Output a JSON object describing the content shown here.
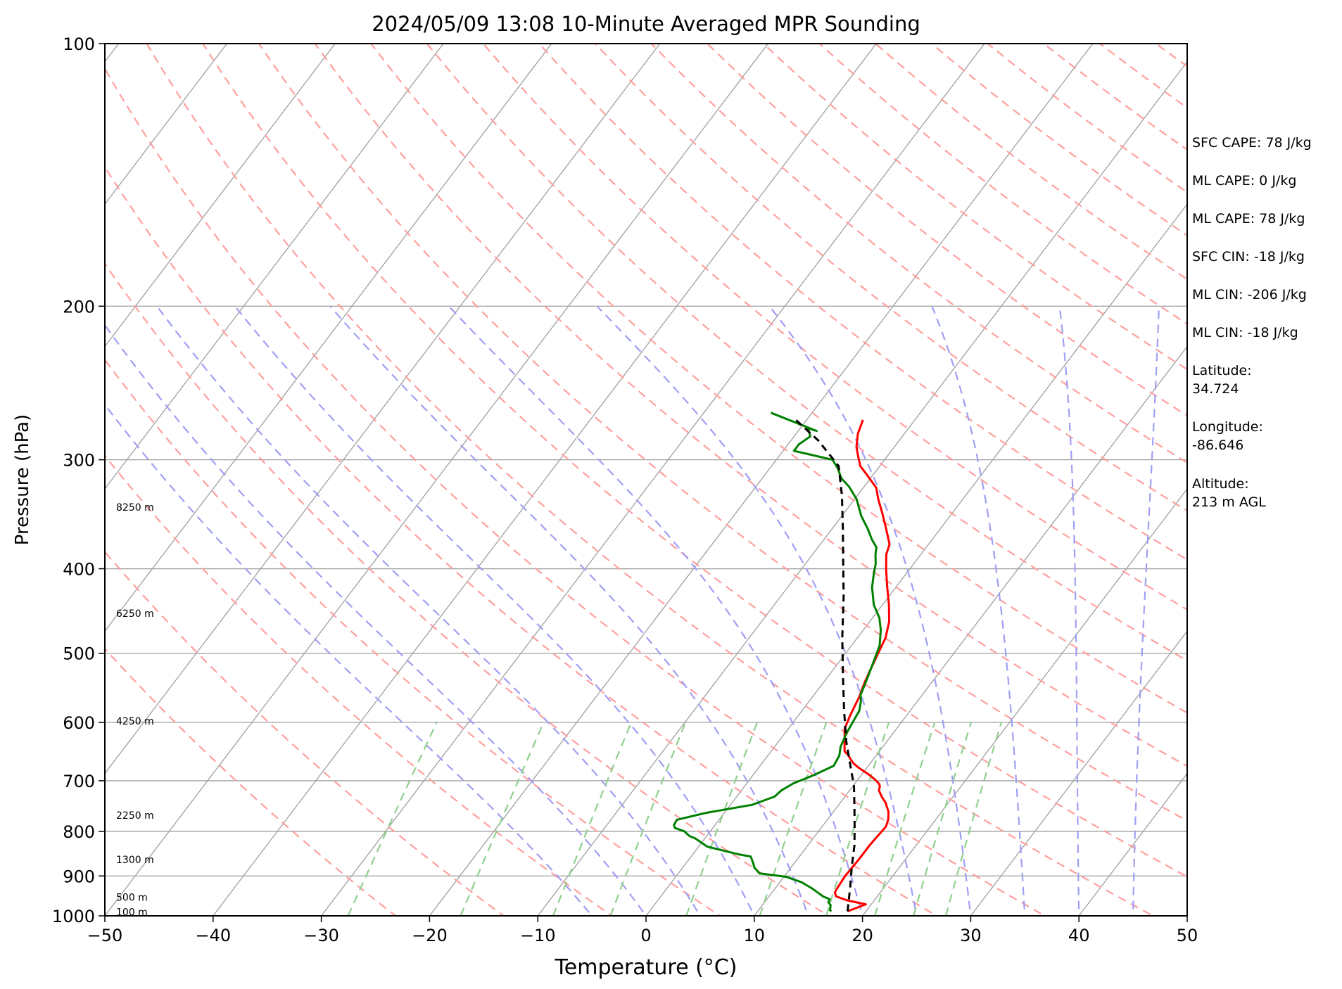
{
  "chart_data": {
    "type": "line",
    "subtype": "skew-t log-p sounding",
    "title": "2024/05/09 13:08 10-Minute Averaged MPR Sounding",
    "xlabel": "Temperature (°C)",
    "ylabel": "Pressure (hPa)",
    "xlim": [
      -50,
      50
    ],
    "ylim": [
      1000,
      100
    ],
    "y_scale": "log",
    "x_ticks": [
      "−50",
      "−40",
      "−30",
      "−20",
      "−10",
      "0",
      "10",
      "20",
      "30",
      "40",
      "50"
    ],
    "y_ticks": [
      "100",
      "200",
      "300",
      "400",
      "500",
      "600",
      "700",
      "800",
      "900",
      "1000"
    ],
    "height_labels": [
      "8250 m",
      "6250 m",
      "4250 m",
      "2250 m",
      "1300 m",
      "500 m",
      "100 m"
    ],
    "height_label_pressures": [
      340,
      450,
      598,
      767,
      862,
      952,
      990
    ],
    "grid": true,
    "series": [
      {
        "role": "temperature",
        "color": "#ff0000",
        "points": [
          [
            18.3,
            988
          ],
          [
            19.5,
            970
          ],
          [
            17.5,
            960
          ],
          [
            16.2,
            950
          ],
          [
            15.8,
            940
          ],
          [
            15.7,
            925
          ],
          [
            15.6,
            900
          ],
          [
            15.7,
            860
          ],
          [
            15.7,
            830
          ],
          [
            15.8,
            810
          ],
          [
            15.9,
            790
          ],
          [
            15.6,
            775
          ],
          [
            15.1,
            760
          ],
          [
            14.6,
            750
          ],
          [
            14.2,
            742
          ],
          [
            13.4,
            730
          ],
          [
            12.7,
            718
          ],
          [
            12.5,
            710
          ],
          [
            12.2,
            705
          ],
          [
            11.6,
            698
          ],
          [
            10.8,
            690
          ],
          [
            10.0,
            683
          ],
          [
            9.2,
            676
          ],
          [
            8.4,
            668
          ],
          [
            7.8,
            660
          ],
          [
            7.3,
            653
          ],
          [
            6.8,
            648
          ],
          [
            5.2,
            610
          ],
          [
            4.8,
            590
          ],
          [
            4.3,
            560
          ],
          [
            3.8,
            540
          ],
          [
            3.4,
            520
          ],
          [
            3.0,
            500
          ],
          [
            2.6,
            480
          ],
          [
            1.8,
            460
          ],
          [
            0.6,
            440
          ],
          [
            -0.8,
            420
          ],
          [
            -2.2,
            400
          ],
          [
            -3.2,
            385
          ],
          [
            -3.6,
            375
          ],
          [
            -5.0,
            360
          ],
          [
            -6.5,
            345
          ],
          [
            -7.8,
            333
          ],
          [
            -8.8,
            323
          ],
          [
            -10.6,
            312
          ],
          [
            -11.8,
            305
          ],
          [
            -12.6,
            298
          ],
          [
            -13.5,
            290
          ],
          [
            -14.3,
            280
          ],
          [
            -14.8,
            270
          ]
        ]
      },
      {
        "role": "dewpoint",
        "color": "#008000",
        "points": [
          [
            16.8,
            988
          ],
          [
            16.6,
            985
          ],
          [
            16.3,
            972
          ],
          [
            15.9,
            965
          ],
          [
            15.8,
            957
          ],
          [
            15.0,
            950
          ],
          [
            14.2,
            940
          ],
          [
            13.4,
            930
          ],
          [
            12.0,
            915
          ],
          [
            10.2,
            902
          ],
          [
            7.5,
            894
          ],
          [
            6.6,
            880
          ],
          [
            6.2,
            870
          ],
          [
            5.5,
            855
          ],
          [
            4.2,
            850
          ],
          [
            0.8,
            833
          ],
          [
            -0.9,
            815
          ],
          [
            -1.6,
            810
          ],
          [
            -2.4,
            800
          ],
          [
            -3.5,
            793
          ],
          [
            -3.8,
            787
          ],
          [
            -3.9,
            776
          ],
          [
            -1.7,
            762
          ],
          [
            2.0,
            746
          ],
          [
            3.5,
            730
          ],
          [
            3.7,
            718
          ],
          [
            4.3,
            705
          ],
          [
            5.6,
            690
          ],
          [
            6.8,
            673
          ],
          [
            6.6,
            655
          ],
          [
            6.1,
            640
          ],
          [
            5.7,
            618
          ],
          [
            5.5,
            600
          ],
          [
            5.3,
            582
          ],
          [
            4.8,
            568
          ],
          [
            4.3,
            558
          ],
          [
            3.9,
            540
          ],
          [
            3.4,
            520
          ],
          [
            2.6,
            490
          ],
          [
            1.6,
            470
          ],
          [
            0.6,
            455
          ],
          [
            -0.8,
            440
          ],
          [
            -2.2,
            420
          ],
          [
            -3.0,
            405
          ],
          [
            -3.5,
            395
          ],
          [
            -4.2,
            385
          ],
          [
            -4.6,
            378
          ],
          [
            -5.6,
            370
          ],
          [
            -6.7,
            360
          ],
          [
            -8.2,
            348
          ],
          [
            -9.8,
            333
          ],
          [
            -11.4,
            322
          ],
          [
            -12.7,
            315
          ],
          [
            -13.7,
            307
          ],
          [
            -14.8,
            300
          ],
          [
            -19.0,
            293
          ],
          [
            -19.0,
            288
          ],
          [
            -18.5,
            282
          ],
          [
            -19.3,
            276
          ],
          [
            -18.3,
            278
          ],
          [
            -23.8,
            265
          ]
        ]
      },
      {
        "role": "parcel profile",
        "color": "#000000",
        "style": "dashed",
        "points": [
          [
            18.3,
            988
          ],
          [
            16.8,
            925
          ],
          [
            15.6,
            880
          ],
          [
            14.3,
            830
          ],
          [
            13.0,
            790
          ],
          [
            11.6,
            750
          ],
          [
            10.1,
            710
          ],
          [
            8.2,
            670
          ],
          [
            6.2,
            630
          ],
          [
            3.8,
            580
          ],
          [
            1.3,
            530
          ],
          [
            -1.4,
            480
          ],
          [
            -4.2,
            430
          ],
          [
            -6.5,
            395
          ],
          [
            -9.0,
            360
          ],
          [
            -11.4,
            330
          ],
          [
            -13.8,
            305
          ],
          [
            -17.5,
            285
          ],
          [
            -21.0,
            270
          ]
        ]
      }
    ],
    "reference_lines": {
      "isotherms": [
        -150,
        -140,
        -130,
        -120,
        -110,
        -100,
        -90,
        -80,
        -70,
        -60,
        -50,
        -40,
        -30,
        -20,
        -10,
        0,
        10,
        20,
        30,
        40,
        50
      ],
      "dry_adiabats_theta_k": [
        250,
        260,
        270,
        280,
        290,
        300,
        310,
        320,
        330,
        340,
        350,
        360,
        370,
        380,
        390,
        400,
        410,
        420,
        430,
        440,
        450,
        460,
        470,
        480,
        490,
        500
      ],
      "moist_adiabats_start_c": [
        -5,
        0,
        5,
        10,
        15,
        20,
        25,
        30,
        35,
        40,
        45
      ],
      "mixing_ratio_lines_g_per_kg": [
        0.4,
        1,
        2,
        3,
        5,
        8,
        12,
        16,
        20,
        24
      ]
    }
  },
  "stats": {
    "sfc_cape": "SFC CAPE: 78 J/kg",
    "ml_cape_1": "ML CAPE: 0 J/kg",
    "ml_cape_2": "ML CAPE: 78 J/kg",
    "sfc_cin": "SFC CIN: -18 J/kg",
    "ml_cin_1": "ML CIN: -206 J/kg",
    "ml_cin_2": "ML CIN: -18 J/kg",
    "latitude": "Latitude:\n34.724",
    "longitude": "Longitude:\n-86.646",
    "altitude": "Altitude:\n213 m AGL"
  },
  "colors": {
    "temperature": "#ff0000",
    "dewpoint": "#008000",
    "parcel": "#000000",
    "dry_adiabat": "#ff9f9f",
    "moist_adiabat": "#9f9ff4",
    "mixing_ratio": "#8fcf8f",
    "isotherm": "#9f9f9f"
  }
}
